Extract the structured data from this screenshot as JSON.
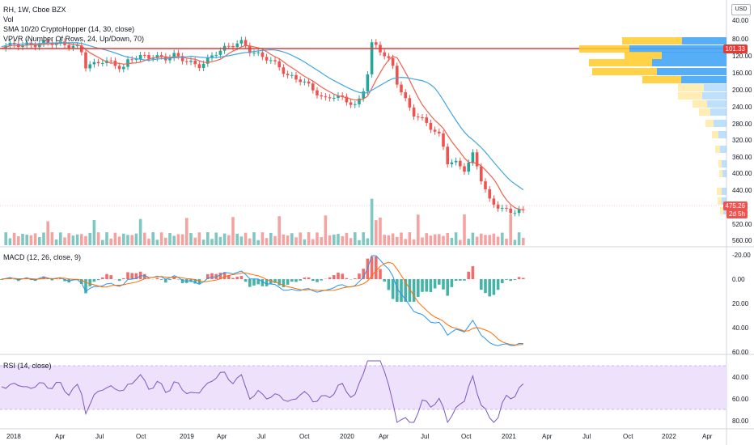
{
  "main_legend": {
    "symbol": "RH, 1W, Cboe BZX",
    "vol": "Vol",
    "sma": "SMA 10/20 CryptoHopper (14, 30, close)",
    "vpvr": "VPVR (Number Of Rows, 24, Up/Down, 70)"
  },
  "macd_legend": "MACD (12, 26, close, 9)",
  "rsi_legend": "RSI (14, close)",
  "currency_button": "USD",
  "price_axis": [
    "40.00",
    "80.00",
    "120.00",
    "160.00",
    "200.00",
    "240.00",
    "280.00",
    "320.00",
    "360.00",
    "400.00",
    "440.00",
    "520.00",
    "560.00"
  ],
  "price_tags": {
    "line_level": "101.33",
    "last_price": "475.26",
    "countdown": "2d 5h"
  },
  "macd_axis": [
    "-20.00",
    "0.00",
    "20.00",
    "40.00",
    "60.00"
  ],
  "rsi_axis": [
    "40.00",
    "60.00",
    "80.00"
  ],
  "time_axis": [
    "2018",
    "Apr",
    "Jul",
    "Oct",
    "2019",
    "Apr",
    "Jul",
    "Oct",
    "2020",
    "Apr",
    "Jul",
    "Oct",
    "2021",
    "Apr",
    "Jul",
    "Oct",
    "2022",
    "Apr"
  ],
  "colors": {
    "up": "#26a69a",
    "down": "#ef5350",
    "sma_fast": "#f0614f",
    "sma_slow": "#3fa7e0",
    "hline": "#e53935",
    "vp_up": "#42a5f5",
    "vp_down": "#ffca28",
    "rsi_line": "#7e57c2",
    "rsi_band": "#ede1fb"
  }
}
